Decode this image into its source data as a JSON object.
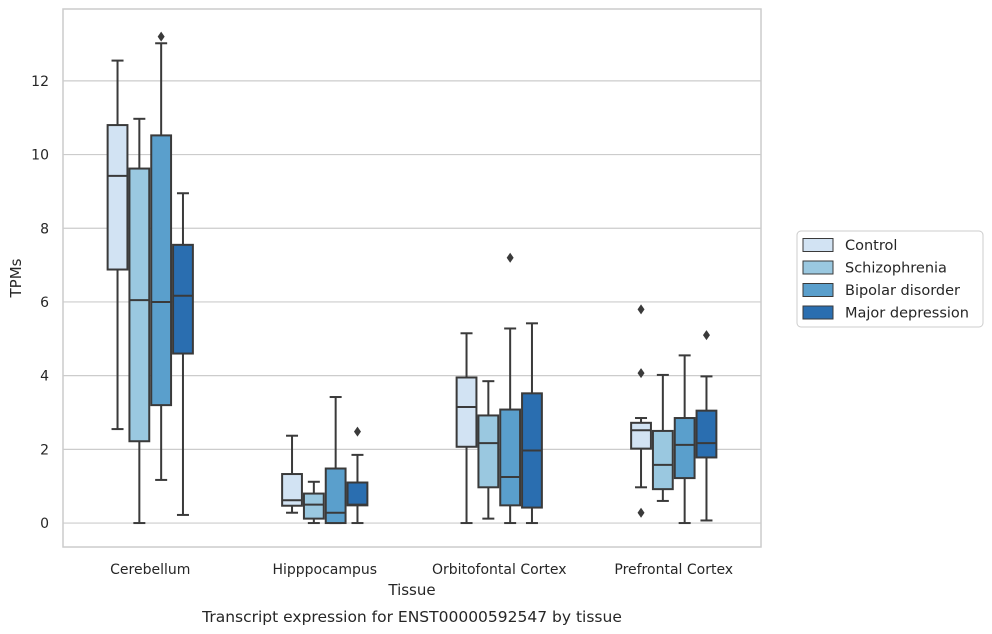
{
  "chart_data": {
    "type": "box",
    "caption": "Transcript expression for ENST00000592547 by tissue",
    "xlabel": "Tissue",
    "ylabel": "TPMs",
    "ylim": [
      -0.65,
      13.95
    ],
    "yticks": [
      0,
      2,
      4,
      6,
      8,
      10,
      12
    ],
    "grid": true,
    "legend_position": "right",
    "categories": [
      "Cerebellum",
      "Hipppocampus",
      "Orbitofontal Cortex",
      "Prefrontal Cortex"
    ],
    "series": [
      {
        "name": "Control",
        "color": "#d2e3f3",
        "boxes": [
          {
            "whisker_low": 2.55,
            "q1": 6.88,
            "median": 9.42,
            "q3": 10.8,
            "whisker_high": 12.55,
            "outliers": []
          },
          {
            "whisker_low": 0.28,
            "q1": 0.47,
            "median": 0.62,
            "q3": 1.33,
            "whisker_high": 2.37,
            "outliers": []
          },
          {
            "whisker_low": 0.0,
            "q1": 2.07,
            "median": 3.15,
            "q3": 3.95,
            "whisker_high": 5.15,
            "outliers": []
          },
          {
            "whisker_low": 0.97,
            "q1": 2.02,
            "median": 2.52,
            "q3": 2.72,
            "whisker_high": 2.85,
            "outliers": [
              5.8,
              4.07,
              0.28
            ]
          }
        ]
      },
      {
        "name": "Schizophrenia",
        "color": "#9ac8e0",
        "boxes": [
          {
            "whisker_low": 0.0,
            "q1": 2.22,
            "median": 6.05,
            "q3": 9.62,
            "whisker_high": 10.97,
            "outliers": []
          },
          {
            "whisker_low": 0.0,
            "q1": 0.12,
            "median": 0.5,
            "q3": 0.8,
            "whisker_high": 1.12,
            "outliers": []
          },
          {
            "whisker_low": 0.12,
            "q1": 0.97,
            "median": 2.17,
            "q3": 2.92,
            "whisker_high": 3.85,
            "outliers": []
          },
          {
            "whisker_low": 0.6,
            "q1": 0.92,
            "median": 1.58,
            "q3": 2.5,
            "whisker_high": 4.02,
            "outliers": []
          }
        ]
      },
      {
        "name": "Bipolar disorder",
        "color": "#5a9fcc",
        "boxes": [
          {
            "whisker_low": 1.17,
            "q1": 3.2,
            "median": 6.0,
            "q3": 10.52,
            "whisker_high": 13.02,
            "outliers": [
              13.2
            ]
          },
          {
            "whisker_low": 0.0,
            "q1": 0.0,
            "median": 0.28,
            "q3": 1.48,
            "whisker_high": 3.42,
            "outliers": []
          },
          {
            "whisker_low": 0.0,
            "q1": 0.48,
            "median": 1.25,
            "q3": 3.08,
            "whisker_high": 5.28,
            "outliers": [
              7.2
            ]
          },
          {
            "whisker_low": 0.0,
            "q1": 1.22,
            "median": 2.12,
            "q3": 2.85,
            "whisker_high": 4.55,
            "outliers": []
          }
        ]
      },
      {
        "name": "Major depression",
        "color": "#2a6eb0",
        "boxes": [
          {
            "whisker_low": 0.22,
            "q1": 4.6,
            "median": 6.17,
            "q3": 7.55,
            "whisker_high": 8.95,
            "outliers": []
          },
          {
            "whisker_low": 0.0,
            "q1": 0.48,
            "median": 0.5,
            "q3": 1.1,
            "whisker_high": 1.85,
            "outliers": [
              2.48
            ]
          },
          {
            "whisker_low": 0.0,
            "q1": 0.42,
            "median": 1.97,
            "q3": 3.52,
            "whisker_high": 5.42,
            "outliers": []
          },
          {
            "whisker_low": 0.07,
            "q1": 1.78,
            "median": 2.17,
            "q3": 3.05,
            "whisker_high": 3.98,
            "outliers": [
              5.1
            ]
          }
        ]
      }
    ]
  }
}
